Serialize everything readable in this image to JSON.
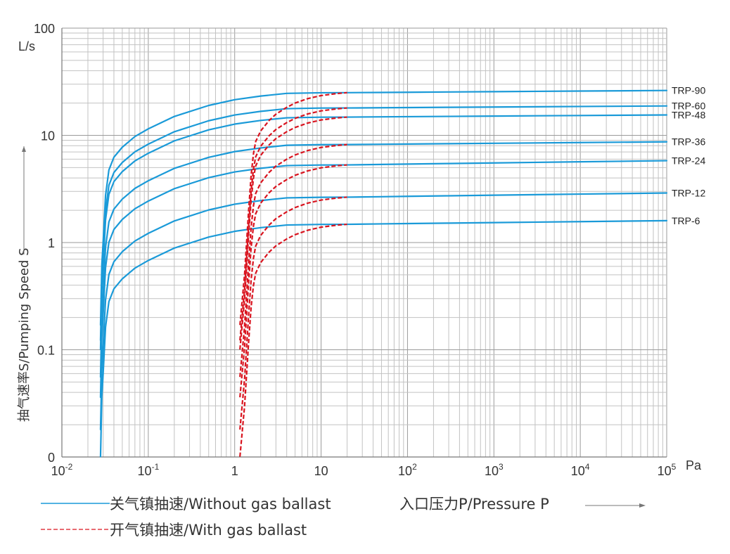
{
  "chart_data": {
    "type": "line",
    "xscale": "log",
    "yscale": "log",
    "xlim": [
      0.01,
      100000
    ],
    "ylim": [
      0.01,
      100
    ],
    "x_ticks": [
      {
        "value": 0.01,
        "base": "10",
        "exp": "-2"
      },
      {
        "value": 0.1,
        "base": "10",
        "exp": "-1"
      },
      {
        "value": 1,
        "base": "1",
        "exp": ""
      },
      {
        "value": 10,
        "base": "10",
        "exp": ""
      },
      {
        "value": 100,
        "base": "10",
        "exp": "2"
      },
      {
        "value": 1000,
        "base": "10",
        "exp": "3"
      },
      {
        "value": 10000,
        "base": "10",
        "exp": "4"
      },
      {
        "value": 100000,
        "base": "10",
        "exp": "5"
      }
    ],
    "y_ticks": [
      {
        "value": 0.01,
        "label": "0"
      },
      {
        "value": 0.1,
        "label": "0.1"
      },
      {
        "value": 1,
        "label": "1"
      },
      {
        "value": 10,
        "label": "10"
      },
      {
        "value": 100,
        "label": "100"
      }
    ],
    "xunit": "Pa",
    "yunit": "L/s",
    "ylabel": "抽气速率S/Pumping Speed S",
    "xlabel": "入口压力P/Pressure P",
    "grid": true,
    "series_style": {
      "without": {
        "color": "#1a9ad8",
        "dash": ""
      },
      "with": {
        "color": "#d9141f",
        "dash": "6,3"
      }
    },
    "models": [
      {
        "name": "TRP-90",
        "plateau": 25,
        "end": 26.2
      },
      {
        "name": "TRP-60",
        "plateau": 18,
        "end": 18.8
      },
      {
        "name": "TRP-48",
        "plateau": 14.8,
        "end": 15.5
      },
      {
        "name": "TRP-36",
        "plateau": 8.2,
        "end": 8.7
      },
      {
        "name": "TRP-24",
        "plateau": 5.3,
        "end": 5.8
      },
      {
        "name": "TRP-12",
        "plateau": 2.65,
        "end": 2.9
      },
      {
        "name": "TRP-6",
        "plateau": 1.48,
        "end": 1.6
      }
    ],
    "without_gas_ballast": {
      "x": [
        0.028,
        0.029,
        0.03,
        0.032,
        0.035,
        0.04,
        0.05,
        0.07,
        0.1,
        0.2,
        0.5,
        1,
        2,
        4,
        10,
        20,
        50,
        100,
        300,
        1000,
        10000,
        100000
      ],
      "fraction": [
        0.0068,
        0.025,
        0.04,
        0.11,
        0.19,
        0.25,
        0.31,
        0.39,
        0.46,
        0.6,
        0.76,
        0.86,
        0.93,
        0.985,
        0.998,
        1,
        1,
        1,
        1,
        1,
        1,
        1
      ]
    },
    "with_gas_ballast": {
      "x": [
        1.15,
        1.3,
        1.45,
        1.55,
        1.65,
        1.75,
        2,
        2.5,
        3,
        4,
        5,
        7,
        10,
        15,
        20
      ],
      "fraction": [
        0.0068,
        0.02,
        0.08,
        0.17,
        0.27,
        0.35,
        0.44,
        0.55,
        0.63,
        0.73,
        0.8,
        0.88,
        0.94,
        0.98,
        1
      ]
    }
  },
  "legend": {
    "without_label": "关气镇抽速/Without gas ballast",
    "with_label": "开气镇抽速/With gas ballast"
  }
}
